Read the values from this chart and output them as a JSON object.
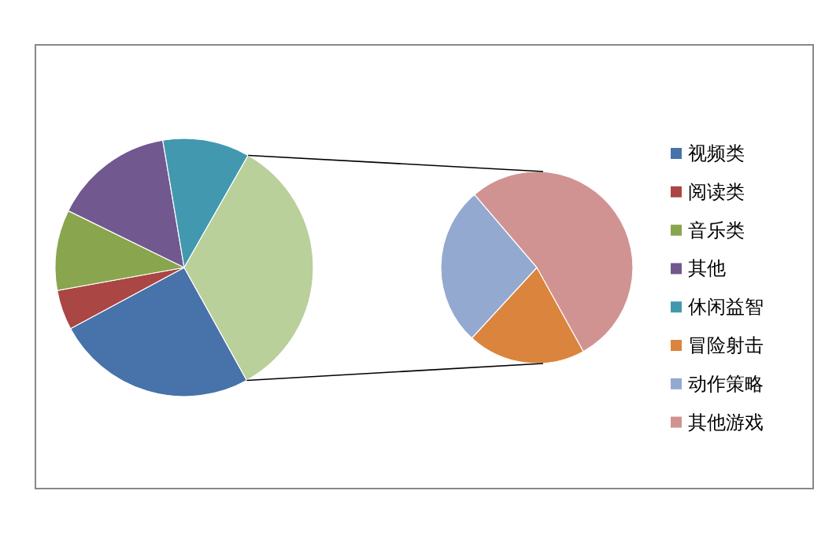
{
  "chart_data": [
    {
      "type": "pie",
      "categories": [
        "视频类",
        "阅读类",
        "音乐类",
        "其他",
        "休闲益智",
        null
      ],
      "values": [
        25.2,
        5.0,
        10.1,
        15.1,
        10.9,
        33.7
      ],
      "colors": [
        "#4772aa",
        "#aa4644",
        "#89a54e",
        "#71588f",
        "#4198af",
        "#b9d09a"
      ],
      "legend": "right"
    },
    {
      "type": "pie",
      "categories": [
        "冒险射击",
        "动作策略",
        "其他游戏"
      ],
      "values": [
        19.9,
        26.9,
        53.2
      ],
      "colors": [
        "#db843d",
        "#93a9cf",
        "#d19392"
      ],
      "legend": "right"
    }
  ]
}
